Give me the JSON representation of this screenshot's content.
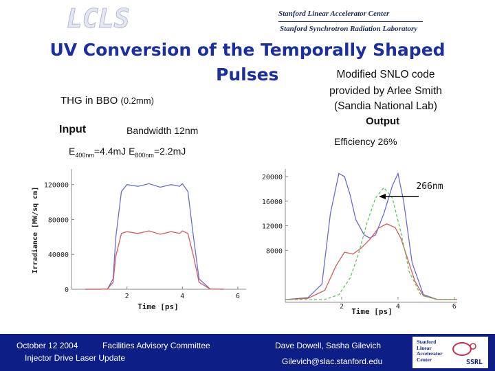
{
  "header": {
    "logo_text": "LCLS",
    "lab_line1": "Stanford Linear Accelerator Center",
    "lab_line2": "Stanford Synchrotron Radiation Laboratory"
  },
  "slide": {
    "title_line1": "UV Conversion of the Temporally Shaped",
    "title_line2": "Pulses",
    "snlo_line1": "Modified SNLO code",
    "snlo_line2": "provided by Arlee Smith",
    "snlo_line3": "(Sandia National Lab)",
    "thg_label": "THG in BBO ",
    "thg_size": "(0.2mm)",
    "input_label": "Input",
    "bandwidth": "Bandwidth 12nm",
    "output_label": "Output",
    "efficiency": "Efficiency 26%",
    "energy_e1": "E",
    "energy_sub1": "400nm",
    "energy_mid": "=4.4mJ E",
    "energy_sub2": "800nm",
    "energy_end": "=2.2mJ",
    "arrow_label": "266nm"
  },
  "footer": {
    "date": "October 12 2004",
    "meeting": "Facilities Advisory Committee",
    "topic": "Injector Drive Laser Update",
    "authors": "Dave Dowell, Sasha Gilevich",
    "email": "Gilevich@slac.stanford.edu",
    "logo_line1": "Stanford",
    "logo_line2": "Linear",
    "logo_line3": "Accelerator",
    "logo_line4": "Center",
    "logo_ssrl": "SSRL"
  },
  "colors": {
    "title": "#1b2f9e",
    "footer_bg": "#0d1f86",
    "blue_trace": "#6a6ad8",
    "red_trace": "#d85a5a",
    "green_trace": "#5ac85a"
  },
  "chart_data": [
    {
      "type": "line",
      "title": "",
      "xlabel": "Time [ps]",
      "ylabel": "Irradiance [MW/sq cm]",
      "xlim": [
        0,
        6.3
      ],
      "ylim": [
        0,
        130000
      ],
      "xticks": [
        "2",
        "4",
        "6"
      ],
      "yticks": [
        "0",
        "40000",
        "80000",
        "120000"
      ],
      "series": [
        {
          "color": "blue",
          "x": [
            0.5,
            1.0,
            1.3,
            1.5,
            1.6,
            1.8,
            2.0,
            2.4,
            2.8,
            3.2,
            3.6,
            3.9,
            4.0,
            4.2,
            4.4,
            4.6,
            5.0,
            5.5
          ],
          "y": [
            0,
            0,
            300,
            12000,
            60000,
            112000,
            120000,
            118000,
            121000,
            117000,
            120000,
            118000,
            121000,
            112000,
            60000,
            12000,
            300,
            0
          ]
        },
        {
          "color": "red",
          "x": [
            0.5,
            1.0,
            1.3,
            1.5,
            1.6,
            1.8,
            2.0,
            2.4,
            2.8,
            3.2,
            3.6,
            3.9,
            4.0,
            4.2,
            4.4,
            4.6,
            5.0,
            5.5
          ],
          "y": [
            0,
            0,
            200,
            8000,
            38000,
            64000,
            66000,
            64000,
            67000,
            63000,
            66000,
            64000,
            67000,
            64000,
            38000,
            8000,
            200,
            0
          ]
        }
      ]
    },
    {
      "type": "line",
      "title": "",
      "xlabel": "Time [ps]",
      "ylabel": "",
      "xlim": [
        0,
        6.1
      ],
      "ylim": [
        0,
        21000
      ],
      "xticks": [
        "2",
        "4",
        "6"
      ],
      "yticks": [
        "8000",
        "12000",
        "16000",
        "20000"
      ],
      "series": [
        {
          "color": "blue",
          "x": [
            0.0,
            0.8,
            1.3,
            1.6,
            1.9,
            2.1,
            2.3,
            2.5,
            2.8,
            3.0,
            3.2,
            3.5,
            3.8,
            4.0,
            4.2,
            4.5,
            4.9,
            5.4,
            6.1
          ],
          "y": [
            0,
            300,
            2500,
            14000,
            20500,
            20000,
            17000,
            13000,
            10500,
            10000,
            10500,
            14000,
            18500,
            20500,
            16000,
            6000,
            800,
            0,
            0
          ]
        },
        {
          "color": "red",
          "x": [
            0.0,
            0.8,
            1.4,
            1.8,
            2.1,
            2.4,
            2.7,
            3.0,
            3.3,
            3.6,
            3.9,
            4.1,
            4.3,
            4.6,
            4.9,
            5.4,
            6.1
          ],
          "y": [
            0,
            200,
            1500,
            5500,
            7700,
            7400,
            8400,
            9800,
            11600,
            12300,
            11700,
            10000,
            7200,
            3000,
            600,
            0,
            0
          ]
        },
        {
          "color": "green",
          "x": [
            0.0,
            1.4,
            1.9,
            2.3,
            2.6,
            2.9,
            3.2,
            3.5,
            3.8,
            4.1,
            4.4,
            4.8,
            5.4,
            6.1
          ],
          "y": [
            0,
            0,
            800,
            3500,
            7500,
            12500,
            16500,
            18200,
            16500,
            11000,
            4500,
            800,
            0,
            0
          ]
        }
      ]
    }
  ]
}
